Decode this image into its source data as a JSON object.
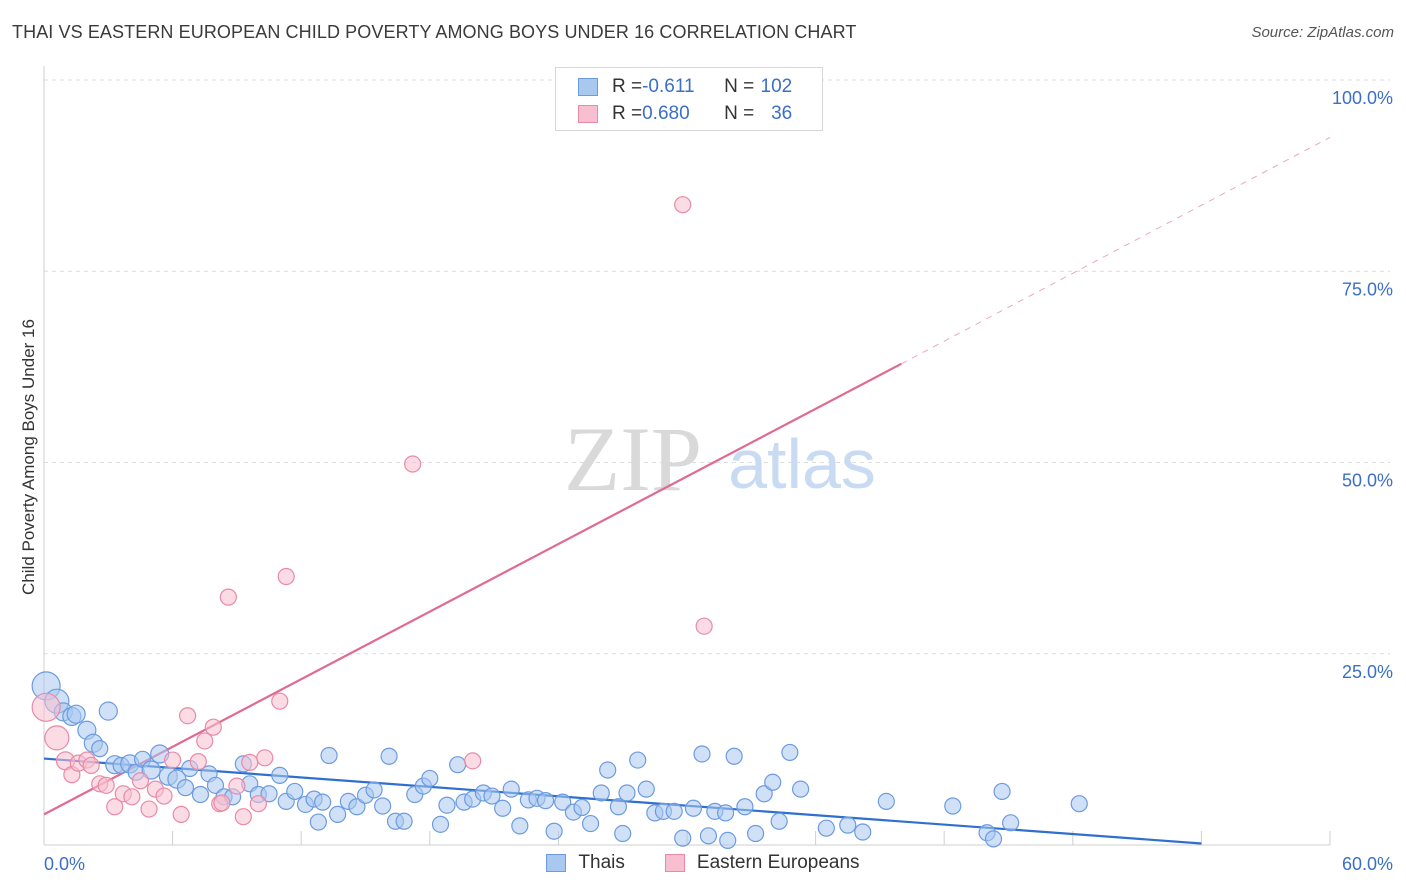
{
  "title": "THAI VS EASTERN EUROPEAN CHILD POVERTY AMONG BOYS UNDER 16 CORRELATION CHART",
  "source": "Source: ZipAtlas.com",
  "watermark": {
    "zip": "ZIP",
    "atlas": "atlas"
  },
  "legend": {
    "r_label": "R = ",
    "n_label": "N = ",
    "rows": [
      {
        "r": "-0.611",
        "n": "102"
      },
      {
        "r": "0.680",
        "n": "36"
      }
    ]
  },
  "colors": {
    "thais_fill": "#a9c8f0",
    "thais_stroke": "#6c9be0",
    "thais_line": "#2f6fcf",
    "eastern_fill": "#f7bfd0",
    "eastern_stroke": "#e88aa8",
    "eastern_line": "#e06a92",
    "axis_label": "#3b6fc6",
    "grid": "#dcdcdc"
  },
  "chart_data": {
    "type": "scatter",
    "title": "THAI VS EASTERN EUROPEAN CHILD POVERTY AMONG BOYS UNDER 16 CORRELATION CHART",
    "xlabel": "",
    "ylabel": "Child Poverty Among Boys Under 16",
    "xlim": [
      0,
      60
    ],
    "ylim": [
      0,
      100
    ],
    "x_tick_labels": [
      "0.0%",
      "60.0%"
    ],
    "y_ticks": [
      25,
      50,
      75,
      100
    ],
    "y_tick_labels": [
      "25.0%",
      "50.0%",
      "75.0%",
      "100.0%"
    ],
    "grid": true,
    "legend_position": "top-center",
    "series": [
      {
        "name": "Thais",
        "r": -0.611,
        "n": 102,
        "trend": {
          "x0": 0,
          "y0": 11.3,
          "x1": 54,
          "y1": 0.2
        },
        "points": [
          [
            0.1,
            20.8,
            14
          ],
          [
            0.6,
            18.8,
            12
          ],
          [
            0.9,
            17.4,
            9
          ],
          [
            1.3,
            16.8,
            9
          ],
          [
            1.5,
            17.1,
            9
          ],
          [
            2.0,
            15.0,
            9
          ],
          [
            2.3,
            13.3,
            9
          ],
          [
            2.6,
            12.6,
            8
          ],
          [
            3.0,
            17.5,
            9
          ],
          [
            3.3,
            10.5,
            9
          ],
          [
            3.6,
            10.4,
            8
          ],
          [
            4.0,
            10.6,
            9
          ],
          [
            4.3,
            9.5,
            8
          ],
          [
            4.6,
            11.2,
            8
          ],
          [
            5.0,
            9.8,
            9
          ],
          [
            5.4,
            11.9,
            9
          ],
          [
            5.8,
            9.0,
            9
          ],
          [
            6.2,
            8.6,
            9
          ],
          [
            6.6,
            7.5,
            8
          ],
          [
            6.8,
            10.0,
            8
          ],
          [
            7.3,
            6.6,
            8
          ],
          [
            7.7,
            9.3,
            8
          ],
          [
            8.0,
            7.8,
            8
          ],
          [
            8.4,
            6.3,
            8
          ],
          [
            8.8,
            6.3,
            8
          ],
          [
            9.3,
            10.6,
            8
          ],
          [
            9.6,
            8.0,
            8
          ],
          [
            10.0,
            6.6,
            8
          ],
          [
            10.5,
            6.7,
            8
          ],
          [
            11.0,
            9.1,
            8
          ],
          [
            11.3,
            5.7,
            8
          ],
          [
            11.7,
            7.0,
            8
          ],
          [
            12.2,
            5.3,
            8
          ],
          [
            12.6,
            6.0,
            8
          ],
          [
            13.0,
            5.6,
            8
          ],
          [
            13.3,
            11.7,
            8
          ],
          [
            13.7,
            4.0,
            8
          ],
          [
            14.2,
            5.7,
            8
          ],
          [
            14.6,
            5.0,
            8
          ],
          [
            15.0,
            6.5,
            8
          ],
          [
            15.4,
            7.2,
            8
          ],
          [
            15.8,
            5.1,
            8
          ],
          [
            16.1,
            11.6,
            8
          ],
          [
            16.4,
            3.1,
            8
          ],
          [
            16.8,
            3.1,
            8
          ],
          [
            17.3,
            6.6,
            8
          ],
          [
            17.7,
            7.7,
            8
          ],
          [
            18.0,
            8.7,
            8
          ],
          [
            18.5,
            2.7,
            8
          ],
          [
            18.8,
            5.2,
            8
          ],
          [
            19.3,
            10.5,
            8
          ],
          [
            19.6,
            5.6,
            8
          ],
          [
            20.0,
            6.0,
            8
          ],
          [
            20.5,
            6.8,
            8
          ],
          [
            20.9,
            6.4,
            8
          ],
          [
            21.4,
            4.8,
            8
          ],
          [
            21.8,
            7.3,
            8
          ],
          [
            22.2,
            2.5,
            8
          ],
          [
            22.6,
            5.9,
            8
          ],
          [
            23.0,
            6.1,
            8
          ],
          [
            23.4,
            5.8,
            8
          ],
          [
            23.8,
            1.8,
            8
          ],
          [
            24.2,
            5.6,
            8
          ],
          [
            24.7,
            4.3,
            8
          ],
          [
            25.1,
            4.9,
            8
          ],
          [
            25.5,
            2.8,
            8
          ],
          [
            26.0,
            6.8,
            8
          ],
          [
            26.3,
            9.8,
            8
          ],
          [
            26.8,
            5.0,
            8
          ],
          [
            27.2,
            6.8,
            8
          ],
          [
            27.7,
            11.1,
            8
          ],
          [
            28.1,
            7.3,
            8
          ],
          [
            28.5,
            4.2,
            8
          ],
          [
            28.9,
            4.4,
            8
          ],
          [
            29.4,
            4.4,
            8
          ],
          [
            29.8,
            0.9,
            8
          ],
          [
            30.3,
            4.8,
            8
          ],
          [
            30.7,
            11.9,
            8
          ],
          [
            31.0,
            1.2,
            8
          ],
          [
            31.3,
            4.4,
            8
          ],
          [
            31.8,
            4.2,
            8
          ],
          [
            32.2,
            11.6,
            8
          ],
          [
            32.7,
            5.0,
            8
          ],
          [
            33.2,
            1.5,
            8
          ],
          [
            33.6,
            6.7,
            8
          ],
          [
            34.0,
            8.2,
            8
          ],
          [
            34.3,
            3.1,
            8
          ],
          [
            34.8,
            12.1,
            8
          ],
          [
            35.3,
            7.3,
            8
          ],
          [
            36.5,
            2.2,
            8
          ],
          [
            37.5,
            2.6,
            8
          ],
          [
            38.2,
            1.7,
            8
          ],
          [
            39.3,
            5.7,
            8
          ],
          [
            42.4,
            5.1,
            8
          ],
          [
            44.0,
            1.6,
            8
          ],
          [
            44.7,
            7.0,
            8
          ],
          [
            45.1,
            2.9,
            8
          ],
          [
            48.3,
            5.4,
            8
          ],
          [
            27.0,
            1.5,
            8
          ],
          [
            12.8,
            3.0,
            8
          ],
          [
            44.3,
            0.8,
            8
          ],
          [
            31.9,
            0.6,
            8
          ]
        ]
      },
      {
        "name": "Eastern Europeans",
        "r": 0.68,
        "n": 36,
        "trend": {
          "x0": 0,
          "y0": 4.0,
          "x1": 40,
          "y1": 62.9,
          "dash_to_x": 60,
          "dash_to_y": 92.5
        },
        "points": [
          [
            0.1,
            18.0,
            14
          ],
          [
            0.6,
            14.0,
            12
          ],
          [
            1.0,
            11.0,
            9
          ],
          [
            1.3,
            9.2,
            8
          ],
          [
            1.6,
            10.7,
            8
          ],
          [
            2.0,
            11.1,
            8
          ],
          [
            2.2,
            10.4,
            8
          ],
          [
            2.6,
            8.0,
            8
          ],
          [
            2.9,
            7.8,
            8
          ],
          [
            3.3,
            5.0,
            8
          ],
          [
            3.7,
            6.7,
            8
          ],
          [
            4.1,
            6.3,
            8
          ],
          [
            4.5,
            8.4,
            8
          ],
          [
            4.9,
            4.7,
            8
          ],
          [
            5.2,
            7.3,
            8
          ],
          [
            5.6,
            6.4,
            8
          ],
          [
            6.0,
            11.1,
            8
          ],
          [
            6.4,
            4.0,
            8
          ],
          [
            6.7,
            16.9,
            8
          ],
          [
            7.2,
            10.9,
            8
          ],
          [
            7.5,
            13.6,
            8
          ],
          [
            7.9,
            15.4,
            8
          ],
          [
            8.2,
            5.4,
            8
          ],
          [
            8.6,
            32.4,
            8
          ],
          [
            9.0,
            7.7,
            8
          ],
          [
            9.3,
            3.7,
            8
          ],
          [
            9.6,
            10.8,
            8
          ],
          [
            10.0,
            5.4,
            8
          ],
          [
            10.3,
            11.4,
            8
          ],
          [
            11.0,
            18.8,
            8
          ],
          [
            11.3,
            35.1,
            8
          ],
          [
            17.2,
            49.8,
            8
          ],
          [
            20.0,
            11.0,
            8
          ],
          [
            29.8,
            83.7,
            8
          ],
          [
            30.8,
            28.6,
            8
          ],
          [
            8.3,
            5.5,
            8
          ]
        ]
      }
    ]
  },
  "bottom_legend": [
    {
      "label": "Thais"
    },
    {
      "label": "Eastern Europeans"
    }
  ]
}
